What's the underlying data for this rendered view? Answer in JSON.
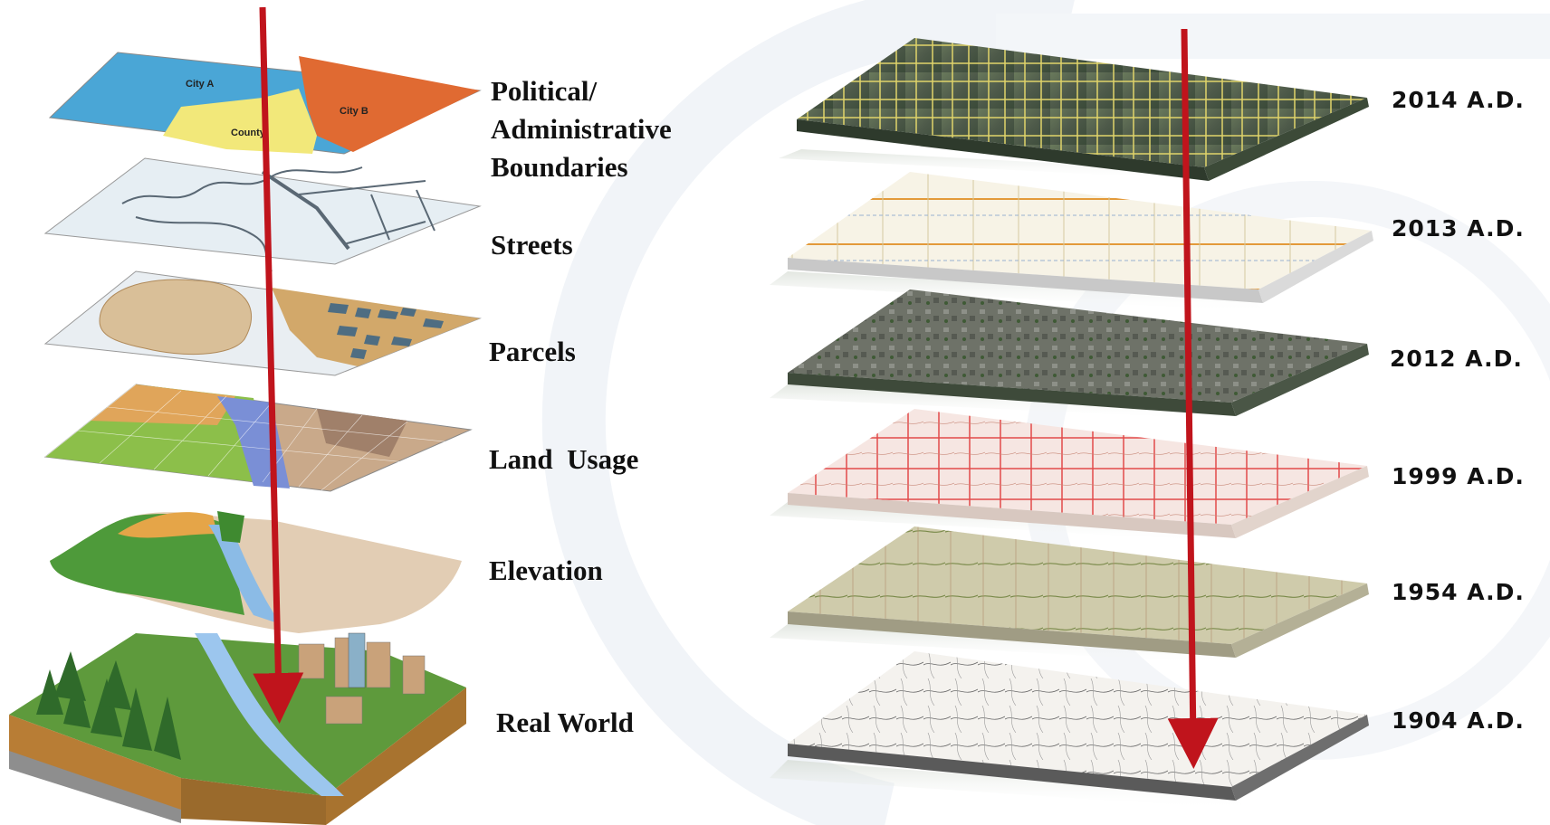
{
  "left_diagram": {
    "layers": [
      {
        "label_lines": [
          "Political/",
          "Administrative",
          "Boundaries"
        ],
        "map_labels": [
          "City A",
          "City B",
          "County"
        ]
      },
      {
        "label_lines": [
          "Streets"
        ]
      },
      {
        "label_lines": [
          "Parcels"
        ]
      },
      {
        "label_lines": [
          "Land  Usage"
        ]
      },
      {
        "label_lines": [
          "Elevation"
        ]
      },
      {
        "label_lines": [
          "Real World"
        ]
      }
    ]
  },
  "right_diagram": {
    "layers": [
      {
        "year": "2014 A.D."
      },
      {
        "year": "2013 A.D."
      },
      {
        "year": "2012 A.D."
      },
      {
        "year": "1999 A.D."
      },
      {
        "year": "1954 A.D."
      },
      {
        "year": "1904 A.D."
      }
    ]
  },
  "colors": {
    "arrow": "#c0141c",
    "city_a": "#4aa6d6",
    "city_b": "#e06a32",
    "county": "#f2e87a",
    "streets_base": "#e6eef3",
    "parcels_tan": "#d2a86a",
    "parcel_blocks": "#4e6d82"
  }
}
